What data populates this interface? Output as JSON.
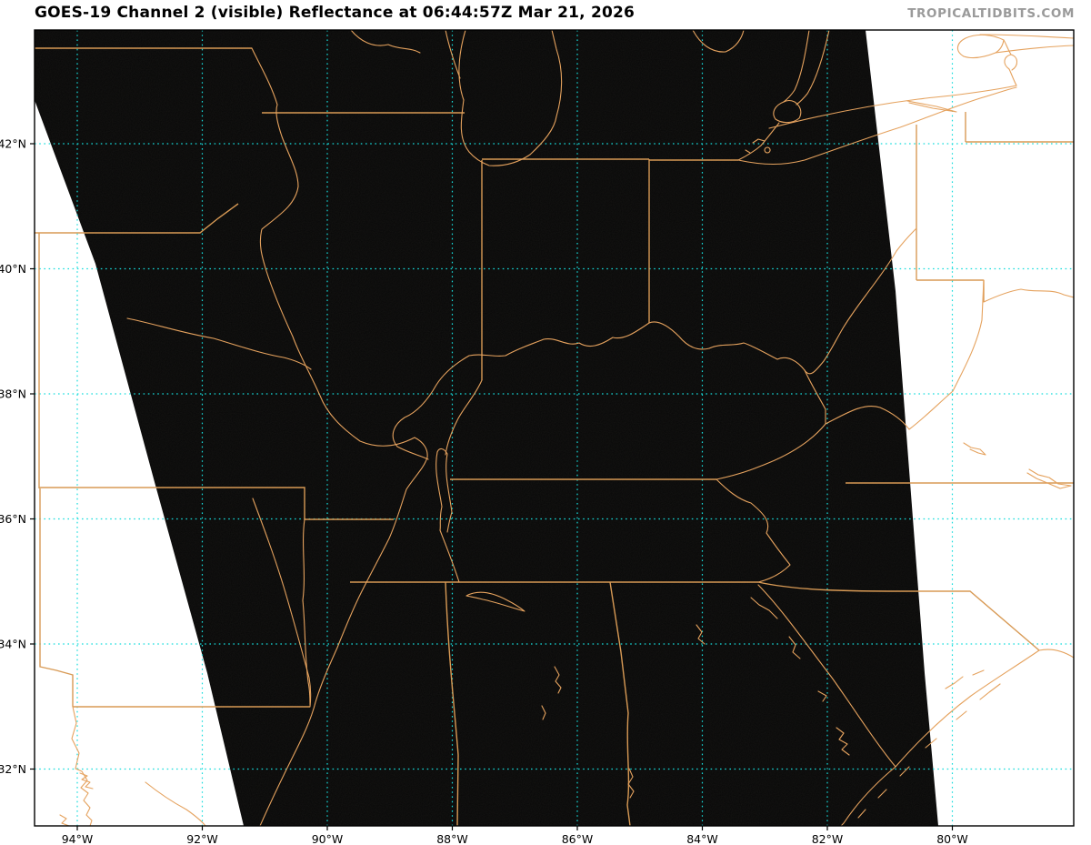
{
  "header": {
    "title": "GOES-19 Channel 2 (visible) Reflectance at 06:44:57Z Mar 21, 2026",
    "watermark": "TROPICALTIDBITS.COM"
  },
  "figure": {
    "description": "GOES-19 visible-channel satellite image over the central/eastern United States at night; scanned swath appears black between two diagonal scan edges, outside the swath is white. State borders, rivers, lakes and coastlines drawn in orange; dotted cyan latitude/longitude gridlines.",
    "satellite": "GOES-19",
    "channel": "Channel 2 (visible)",
    "product": "Reflectance",
    "valid_time": "06:44:57Z Mar 21, 2026"
  },
  "axes": {
    "latitude": [
      {
        "deg": 42,
        "label": "42°N"
      },
      {
        "deg": 40,
        "label": "40°N"
      },
      {
        "deg": 38,
        "label": "38°N"
      },
      {
        "deg": 36,
        "label": "36°N"
      },
      {
        "deg": 34,
        "label": "34°N"
      },
      {
        "deg": 32,
        "label": "32°N"
      }
    ],
    "longitude": [
      {
        "deg": 94,
        "label": "94°W"
      },
      {
        "deg": 92,
        "label": "92°W"
      },
      {
        "deg": 90,
        "label": "90°W"
      },
      {
        "deg": 88,
        "label": "88°W"
      },
      {
        "deg": 86,
        "label": "86°W"
      },
      {
        "deg": 84,
        "label": "84°W"
      },
      {
        "deg": 82,
        "label": "82°W"
      },
      {
        "deg": 80,
        "label": "80°W"
      }
    ]
  },
  "colors": {
    "background": "#ffffff",
    "satellite_dark": "#070707",
    "map_lines": "#e5a25e",
    "gridlines": "#16dcdc",
    "title_text": "#000000",
    "watermark_text": "#9a9a9a"
  }
}
